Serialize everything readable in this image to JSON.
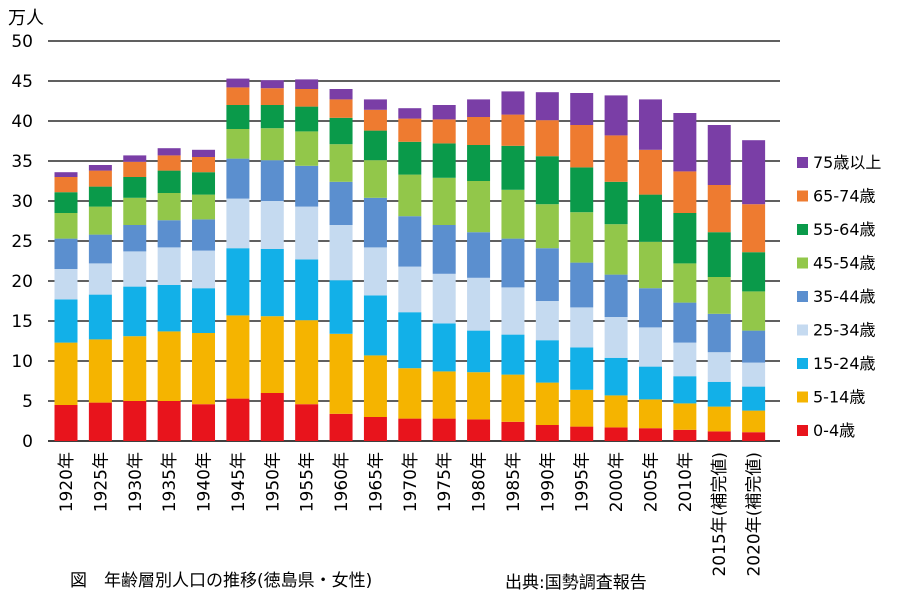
{
  "caption": "図　年齢層別人口の推移(徳島県・女性)",
  "source": "出典:国勢調査報告",
  "chart_data": {
    "type": "bar",
    "stacked": true,
    "unit_label": "万人",
    "ylim": [
      0,
      50
    ],
    "yticks": [
      0,
      5,
      10,
      15,
      20,
      25,
      30,
      35,
      40,
      45,
      50
    ],
    "grid": true,
    "legend_position": "right",
    "categories": [
      "1920年",
      "1925年",
      "1930年",
      "1935年",
      "1940年",
      "1945年",
      "1950年",
      "1955年",
      "1960年",
      "1965年",
      "1970年",
      "1975年",
      "1980年",
      "1985年",
      "1990年",
      "1995年",
      "2000年",
      "2005年",
      "2010年",
      "2015年(補完値)",
      "2020年(補完値)"
    ],
    "series": [
      {
        "name": "0-4歳",
        "color": "#e8141c",
        "values": [
          4.5,
          4.8,
          5.0,
          5.0,
          4.6,
          5.3,
          6.0,
          4.6,
          3.4,
          3.0,
          2.8,
          2.8,
          2.7,
          2.4,
          2.0,
          1.8,
          1.7,
          1.6,
          1.4,
          1.2,
          1.1
        ]
      },
      {
        "name": "5-14歳",
        "color": "#f5b400",
        "values": [
          7.8,
          7.9,
          8.1,
          8.7,
          8.9,
          10.4,
          9.6,
          10.5,
          10.0,
          7.7,
          6.3,
          5.9,
          5.9,
          5.9,
          5.3,
          4.6,
          4.0,
          3.6,
          3.3,
          3.1,
          2.7
        ]
      },
      {
        "name": "15-24歳",
        "color": "#12b0e8",
        "values": [
          5.4,
          5.6,
          6.2,
          5.8,
          5.6,
          8.4,
          8.4,
          7.6,
          6.7,
          7.5,
          7.0,
          6.0,
          5.2,
          5.0,
          5.3,
          5.3,
          4.7,
          4.1,
          3.4,
          3.1,
          3.0
        ]
      },
      {
        "name": "25-34歳",
        "color": "#c5daf0",
        "values": [
          3.8,
          3.9,
          4.4,
          4.7,
          4.7,
          6.2,
          6.0,
          6.6,
          6.9,
          6.0,
          5.7,
          6.2,
          6.6,
          5.9,
          4.9,
          5.0,
          5.1,
          4.9,
          4.2,
          3.7,
          3.0
        ]
      },
      {
        "name": "35-44歳",
        "color": "#5b8fcf",
        "values": [
          3.8,
          3.6,
          3.3,
          3.4,
          3.9,
          5.0,
          5.1,
          5.1,
          5.4,
          6.2,
          6.3,
          6.1,
          5.7,
          6.1,
          6.6,
          5.6,
          5.3,
          4.9,
          5.0,
          4.8,
          4.0
        ]
      },
      {
        "name": "45-54歳",
        "color": "#92c74a",
        "values": [
          3.2,
          3.5,
          3.4,
          3.4,
          3.1,
          3.7,
          4.0,
          4.3,
          4.7,
          4.7,
          5.2,
          5.9,
          6.4,
          6.1,
          5.5,
          6.3,
          6.3,
          5.8,
          4.9,
          4.6,
          4.9
        ]
      },
      {
        "name": "55-64歳",
        "color": "#0a9a4a",
        "values": [
          2.6,
          2.5,
          2.6,
          2.8,
          2.8,
          3.0,
          2.9,
          3.1,
          3.3,
          3.7,
          4.1,
          4.3,
          4.5,
          5.5,
          6.0,
          5.6,
          5.3,
          5.9,
          6.3,
          5.6,
          4.9
        ]
      },
      {
        "name": "65-74歳",
        "color": "#ee7b30",
        "values": [
          1.9,
          2.0,
          1.9,
          1.9,
          1.9,
          2.2,
          2.1,
          2.2,
          2.3,
          2.6,
          2.9,
          3.0,
          3.5,
          3.9,
          4.5,
          5.3,
          5.8,
          5.6,
          5.2,
          5.9,
          6.0
        ]
      },
      {
        "name": "75歳以上",
        "color": "#7a3ea6",
        "values": [
          0.6,
          0.7,
          0.8,
          0.9,
          0.9,
          1.1,
          1.0,
          1.2,
          1.3,
          1.3,
          1.3,
          1.8,
          2.2,
          2.9,
          3.5,
          4.0,
          5.0,
          6.3,
          7.3,
          7.5,
          8.0
        ]
      }
    ]
  }
}
